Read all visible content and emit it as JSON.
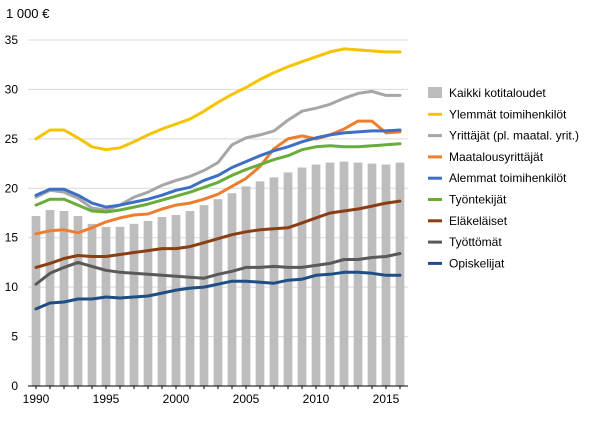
{
  "chart_data": {
    "type": "bar+line",
    "unit_label": "1 000 €",
    "xlabel": "",
    "ylabel": "",
    "ylim": [
      0,
      35
    ],
    "yticks": [
      0,
      5,
      10,
      15,
      20,
      25,
      30,
      35
    ],
    "xlim": [
      1990,
      2016
    ],
    "xticks": [
      1990,
      1995,
      2000,
      2005,
      2010,
      2015
    ],
    "grid": "horizontal",
    "legend_position": "right",
    "x": [
      1990,
      1991,
      1992,
      1993,
      1994,
      1995,
      1996,
      1997,
      1998,
      1999,
      2000,
      2001,
      2002,
      2003,
      2004,
      2005,
      2006,
      2007,
      2008,
      2009,
      2010,
      2011,
      2012,
      2013,
      2014,
      2015,
      2016
    ],
    "bars": {
      "name": "Kaikki kotitaloudet",
      "color": "#bdbdbd",
      "values": [
        17.2,
        17.8,
        17.7,
        17.2,
        16.4,
        16.1,
        16.1,
        16.4,
        16.7,
        17.1,
        17.3,
        17.7,
        18.3,
        18.9,
        19.5,
        20.2,
        20.7,
        21.1,
        21.6,
        22.1,
        22.4,
        22.6,
        22.7,
        22.6,
        22.5,
        22.4,
        22.6
      ]
    },
    "series": [
      {
        "name": "Ylemmät toimihenkilöt",
        "color": "#f5c400",
        "values": [
          25.0,
          25.9,
          25.9,
          25.1,
          24.2,
          23.9,
          24.1,
          24.7,
          25.4,
          26.0,
          26.5,
          27.0,
          27.8,
          28.7,
          29.5,
          30.2,
          31.0,
          31.7,
          32.3,
          32.8,
          33.3,
          33.8,
          34.1,
          34.0,
          33.9,
          33.8,
          33.8
        ]
      },
      {
        "name": "Yrittäjät (pl. maatal. yrit.)",
        "color": "#a6a6a6",
        "values": [
          19.1,
          19.8,
          19.6,
          19.0,
          18.0,
          17.8,
          18.3,
          19.1,
          19.6,
          20.3,
          20.8,
          21.2,
          21.8,
          22.6,
          24.4,
          25.1,
          25.4,
          25.8,
          26.9,
          27.8,
          28.1,
          28.5,
          29.1,
          29.6,
          29.8,
          29.4,
          29.4
        ]
      },
      {
        "name": "Maatalousyrittäjät",
        "color": "#ef7d2f",
        "values": [
          15.4,
          15.7,
          15.8,
          15.5,
          16.0,
          16.6,
          17.0,
          17.3,
          17.4,
          17.9,
          18.3,
          18.5,
          18.9,
          19.4,
          20.2,
          21.0,
          22.2,
          24.0,
          25.0,
          25.3,
          25.0,
          25.4,
          26.0,
          26.8,
          26.8,
          25.6,
          25.7
        ]
      },
      {
        "name": "Alemmat toimihenkilöt",
        "color": "#3d6fc4",
        "values": [
          19.3,
          19.9,
          19.9,
          19.3,
          18.5,
          18.1,
          18.3,
          18.6,
          18.9,
          19.3,
          19.8,
          20.1,
          20.8,
          21.3,
          22.1,
          22.7,
          23.3,
          23.8,
          24.2,
          24.7,
          25.1,
          25.4,
          25.6,
          25.7,
          25.8,
          25.8,
          25.9
        ]
      },
      {
        "name": "Työntekijät",
        "color": "#6aac3b",
        "values": [
          18.3,
          18.9,
          18.9,
          18.3,
          17.7,
          17.6,
          17.8,
          18.1,
          18.4,
          18.8,
          19.2,
          19.6,
          20.1,
          20.6,
          21.3,
          21.9,
          22.4,
          22.9,
          23.3,
          23.9,
          24.2,
          24.3,
          24.2,
          24.2,
          24.3,
          24.4,
          24.5
        ]
      },
      {
        "name": "Eläkeläiset",
        "color": "#8b3d14",
        "values": [
          12.0,
          12.4,
          12.9,
          13.2,
          13.1,
          13.1,
          13.3,
          13.5,
          13.7,
          13.9,
          13.9,
          14.1,
          14.5,
          14.9,
          15.3,
          15.6,
          15.8,
          15.9,
          16.0,
          16.5,
          17.0,
          17.5,
          17.7,
          17.9,
          18.2,
          18.5,
          18.7
        ]
      },
      {
        "name": "Työttömät",
        "color": "#595959",
        "values": [
          10.3,
          11.4,
          12.0,
          12.5,
          12.1,
          11.7,
          11.5,
          11.4,
          11.3,
          11.2,
          11.1,
          11.0,
          10.9,
          11.3,
          11.6,
          12.0,
          12.0,
          12.1,
          12.0,
          12.0,
          12.2,
          12.4,
          12.8,
          12.8,
          13.0,
          13.1,
          13.4
        ]
      },
      {
        "name": "Opiskelijat",
        "color": "#1f4e85",
        "values": [
          7.8,
          8.4,
          8.5,
          8.8,
          8.8,
          9.0,
          8.9,
          9.0,
          9.1,
          9.4,
          9.7,
          9.9,
          10.0,
          10.3,
          10.6,
          10.6,
          10.5,
          10.4,
          10.7,
          10.8,
          11.2,
          11.3,
          11.5,
          11.5,
          11.4,
          11.2,
          11.2
        ]
      }
    ]
  }
}
